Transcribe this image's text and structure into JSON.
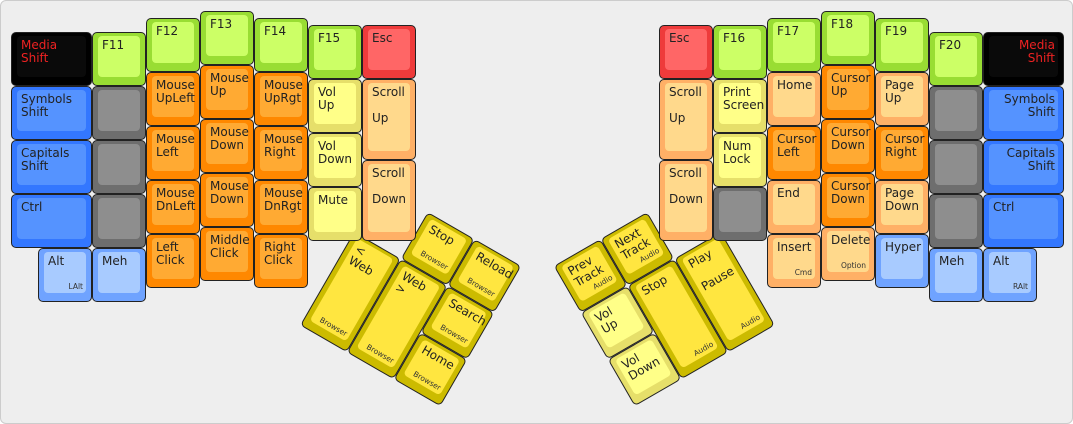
{
  "colors": {
    "green": [
      "#99dd33",
      "#ccff66"
    ],
    "black": [
      "#000000",
      "#0a0a0a"
    ],
    "blue": [
      "#3377ff",
      "#5593ff"
    ],
    "grey": [
      "#6e6e6e",
      "#8e8e8e"
    ],
    "orange": [
      "#ff8800",
      "#ffaa33"
    ],
    "paleyellow": [
      "#e6df6a",
      "#ffff88"
    ],
    "paleorange": [
      "#ffb066",
      "#ffd98c"
    ],
    "red": [
      "#ee3b3b",
      "#ff6666"
    ],
    "lightblue": [
      "#6fa3ff",
      "#a8cbff"
    ],
    "yellow": [
      "#ccbb00",
      "#ffe640"
    ],
    "shift_text": "#ee2222"
  },
  "left": {
    "main": [
      {
        "label": "Media\nShift",
        "color": "black",
        "red": true
      },
      {
        "label": "Symbols\nShift",
        "color": "blue"
      },
      {
        "label": "Capitals\nShift",
        "color": "blue"
      },
      {
        "label": "Ctrl",
        "color": "blue"
      },
      {
        "label": "Alt",
        "sub": "LAlt",
        "color": "lightblue"
      },
      {
        "label": "F11",
        "color": "green"
      },
      {
        "label": "",
        "color": "grey"
      },
      {
        "label": "",
        "color": "grey"
      },
      {
        "label": "",
        "color": "grey"
      },
      {
        "label": "Meh",
        "color": "lightblue"
      },
      {
        "label": "F12",
        "color": "green"
      },
      {
        "label": "Mouse\nUpLeft",
        "color": "orange"
      },
      {
        "label": "Mouse\nLeft",
        "color": "orange"
      },
      {
        "label": "Mouse\nDnLeft",
        "color": "orange"
      },
      {
        "label": "Left\nClick",
        "color": "orange"
      },
      {
        "label": "F13",
        "color": "green"
      },
      {
        "label": "Mouse\nUp",
        "color": "orange"
      },
      {
        "label": "Mouse\nDown",
        "color": "orange"
      },
      {
        "label": "Mouse\nDown",
        "color": "orange"
      },
      {
        "label": "Middle\nClick",
        "color": "orange"
      },
      {
        "label": "F14",
        "color": "green"
      },
      {
        "label": "Mouse\nUpRgt",
        "color": "orange"
      },
      {
        "label": "Mouse\nRight",
        "color": "orange"
      },
      {
        "label": "Mouse\nDnRgt",
        "color": "orange"
      },
      {
        "label": "Right\nClick",
        "color": "orange"
      },
      {
        "label": "F15",
        "color": "green"
      },
      {
        "label": "Vol\nUp",
        "color": "paleyellow"
      },
      {
        "label": "Vol\nDown",
        "color": "paleyellow"
      },
      {
        "label": "Mute",
        "color": "paleyellow"
      },
      {
        "label": "Esc",
        "color": "red"
      },
      {
        "label": "Scroll\n\nUp",
        "color": "paleorange"
      },
      {
        "label": "Scroll\n\nDown",
        "color": "paleorange"
      }
    ],
    "thumb": [
      {
        "label": "Stop",
        "sub": "Browser",
        "color": "yellow"
      },
      {
        "label": "Reload",
        "sub": "Browser",
        "color": "yellow"
      },
      {
        "label": "< Web",
        "sub": "Browser",
        "color": "yellow"
      },
      {
        "label": "Web >",
        "sub": "Browser",
        "color": "yellow"
      },
      {
        "label": "Search",
        "sub": "Browser",
        "color": "yellow"
      },
      {
        "label": "Home",
        "sub": "Browser",
        "color": "yellow"
      }
    ]
  },
  "right": {
    "main": [
      {
        "label": "Esc",
        "color": "red"
      },
      {
        "label": "Scroll\n\nUp",
        "color": "paleorange"
      },
      {
        "label": "Scroll\n\nDown",
        "color": "paleorange"
      },
      {
        "label": "F16",
        "color": "green"
      },
      {
        "label": "Print\nScreen",
        "color": "paleyellow"
      },
      {
        "label": "Num\nLock",
        "color": "paleyellow"
      },
      {
        "label": "",
        "color": "grey"
      },
      {
        "label": "F17",
        "color": "green"
      },
      {
        "label": "Home",
        "color": "paleorange"
      },
      {
        "label": "Cursor\nLeft",
        "color": "orange"
      },
      {
        "label": "End",
        "color": "paleorange"
      },
      {
        "label": "Insert",
        "sub": "Cmd",
        "color": "paleorange"
      },
      {
        "label": "F18",
        "color": "green"
      },
      {
        "label": "Cursor\nUp",
        "color": "orange"
      },
      {
        "label": "Cursor\nDown",
        "color": "orange"
      },
      {
        "label": "Cursor\nDown",
        "color": "orange"
      },
      {
        "label": "Delete",
        "sub": "Option",
        "color": "paleorange"
      },
      {
        "label": "F19",
        "color": "green"
      },
      {
        "label": "Page\nUp",
        "color": "paleorange"
      },
      {
        "label": "Cursor\nRight",
        "color": "orange"
      },
      {
        "label": "Page\nDown",
        "color": "paleorange"
      },
      {
        "label": "Hyper",
        "color": "lightblue"
      },
      {
        "label": "F20",
        "color": "green"
      },
      {
        "label": "",
        "color": "grey"
      },
      {
        "label": "",
        "color": "grey"
      },
      {
        "label": "",
        "color": "grey"
      },
      {
        "label": "Meh",
        "color": "lightblue"
      },
      {
        "label": "Media\nShift",
        "color": "black",
        "red": true,
        "rt": true
      },
      {
        "label": "Symbols\nShift",
        "color": "blue",
        "rt": true
      },
      {
        "label": "Capitals\nShift",
        "color": "blue",
        "rt": true
      },
      {
        "label": "Ctrl",
        "color": "blue"
      },
      {
        "label": "Alt",
        "sub": "RAlt",
        "color": "lightblue"
      }
    ],
    "thumb": [
      {
        "label": "Prev\nTrack",
        "sub": "Audio",
        "color": "yellow"
      },
      {
        "label": "Next\nTrack",
        "sub": "Audio",
        "color": "yellow"
      },
      {
        "label": "Vol\nUp",
        "color": "paleyellow"
      },
      {
        "label": "Vol\nDown",
        "color": "paleyellow"
      },
      {
        "label": "Stop",
        "sub": "Audio",
        "color": "yellow"
      },
      {
        "label": "Play\n\nPause",
        "sub": "Audio",
        "color": "yellow"
      }
    ]
  }
}
